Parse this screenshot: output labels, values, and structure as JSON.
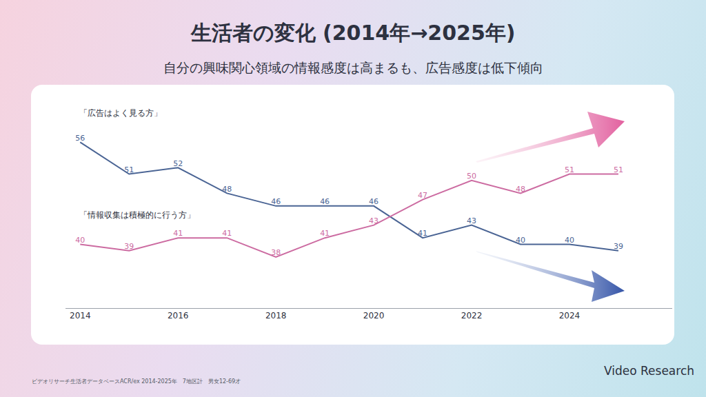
{
  "chart_data": {
    "type": "line",
    "title": "生活者の変化 (2014年→2025年)",
    "subtitle": "自分の興味関心領域の情報感度は高まるも、広告感度は低下傾向",
    "x": [
      2014,
      2015,
      2016,
      2017,
      2018,
      2019,
      2020,
      2021,
      2022,
      2023,
      2024,
      2025
    ],
    "series": [
      {
        "name": "「広告はよく見る方」",
        "color": "#4a6494",
        "values": [
          56,
          51,
          52,
          48,
          46,
          46,
          46,
          41,
          43,
          40,
          40,
          39
        ]
      },
      {
        "name": "「情報収集は積極的に行う方」",
        "color": "#cc6ba1",
        "values": [
          40,
          39,
          41,
          41,
          38,
          41,
          43,
          47,
          50,
          48,
          51,
          51
        ]
      }
    ],
    "xlim": [
      2013.7,
      2026.1
    ],
    "xticks": [
      2014,
      2016,
      2018,
      2020,
      2022,
      2024
    ],
    "ylim": [
      30,
      61
    ],
    "tick_labels": "x",
    "grid": false,
    "data_labels": true,
    "source": "ビデオリサーチ生活者データベースACR/ex 2014-2025年　7地区計　男女12-69才",
    "brand": "Video Research"
  }
}
